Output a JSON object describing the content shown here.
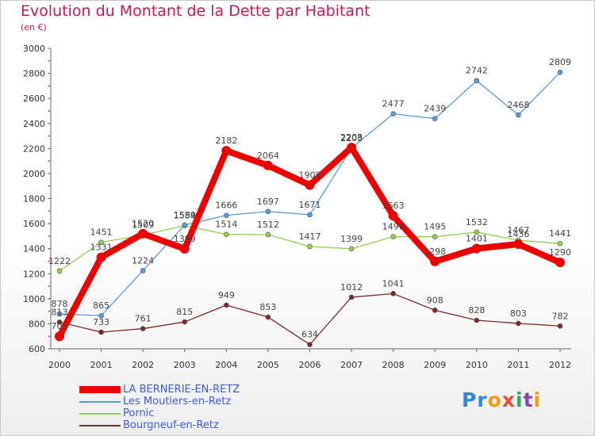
{
  "page": {
    "title": "Evolution du Montant de la Dette par Habitant",
    "subtitle": "(en €)",
    "logo": "Proxiti"
  },
  "colors": {
    "title": "#c2185b",
    "axis": "#666666",
    "grid": "#dddddd",
    "legend_text": "#3b5bdb"
  },
  "chart_data": {
    "type": "line",
    "title": "Evolution du Montant de la Dette par Habitant",
    "subtitle": "(en €)",
    "xlabel": "",
    "ylabel": "",
    "x": [
      2000,
      2001,
      2002,
      2003,
      2004,
      2005,
      2006,
      2007,
      2008,
      2009,
      2010,
      2011,
      2012
    ],
    "yticks": [
      600,
      800,
      1000,
      1200,
      1400,
      1600,
      1800,
      2000,
      2200,
      2400,
      2600,
      2800,
      3000
    ],
    "ylim": [
      600,
      3000
    ],
    "grid": false,
    "legend_position": "bottom-left",
    "series": [
      {
        "name": "LA BERNERIE-EN-RETZ",
        "color": "#ee0000",
        "values": [
          700,
          1331,
          1520,
          1399,
          2182,
          2064,
          1908,
          2208,
          1663,
          1298,
          1401,
          1436,
          1290
        ]
      },
      {
        "name": "Les Moutiers-en-Retz",
        "color": "#5b9bd5",
        "values": [
          878,
          865,
          1224,
          1589,
          1666,
          1697,
          1671,
          2203,
          2477,
          2439,
          2742,
          2468,
          2809
        ]
      },
      {
        "name": "Pornic",
        "color": "#92d050",
        "values": [
          1222,
          1451,
          1509,
          1584,
          1514,
          1512,
          1417,
          1399,
          1496,
          1495,
          1532,
          1467,
          1441
        ]
      },
      {
        "name": "Bourgneuf-en-Retz",
        "color": "#7b2a2a",
        "values": [
          813,
          733,
          761,
          815,
          949,
          853,
          634,
          1012,
          1041,
          908,
          828,
          803,
          782
        ]
      }
    ]
  }
}
